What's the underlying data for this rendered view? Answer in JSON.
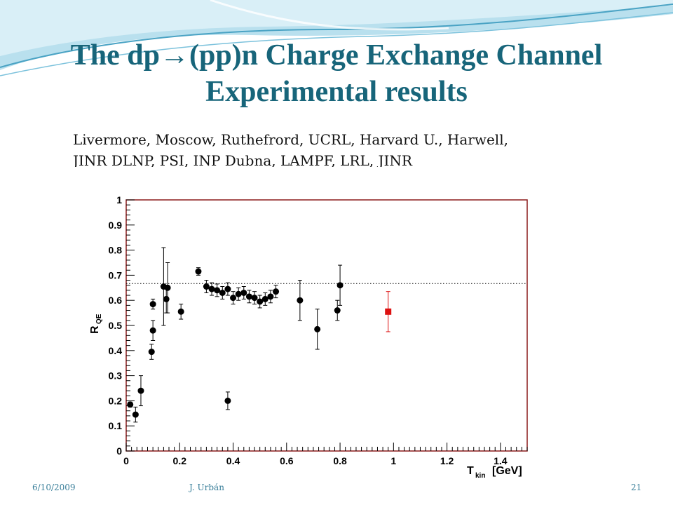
{
  "slide": {
    "title_line1": "The dp→(pp)n Charge Exchange Channel",
    "title_line2": "Experimental results",
    "sources_line1": "Livermore, Moscow, Ruthefrord, UCRL, Harvard U., Harwell,",
    "sources_line2": "JINR DLNP, PSI, INP Dubna, LAMPF, LRL, JINR",
    "theme_colors": {
      "title": "#17657a",
      "frame": "#8b1a1a",
      "highlight": "#dd1111",
      "footer": "#3a7f9a"
    }
  },
  "footer": {
    "date": "6/10/2009",
    "author": "J. Urbán",
    "page": "21"
  },
  "chart_data": {
    "type": "scatter",
    "title": "",
    "xlabel": {
      "main": "T",
      "sub": "kin",
      "units": "[GeV]"
    },
    "ylabel": {
      "main": "R",
      "sub": "QE"
    },
    "xlim": [
      0,
      1.5
    ],
    "ylim": [
      0,
      1
    ],
    "x_ticks": [
      "0",
      "0.2",
      "0.4",
      "0.6",
      "0.8",
      "1",
      "1.2",
      "1.4"
    ],
    "y_ticks": [
      "0",
      "0.1",
      "0.2",
      "0.3",
      "0.4",
      "0.5",
      "0.6",
      "0.7",
      "0.8",
      "0.9",
      "1"
    ],
    "reference_line": {
      "y": 0.667,
      "style": "dotted"
    },
    "grid": false,
    "series": [
      {
        "marker": "circle",
        "color": "#000000",
        "points": [
          {
            "x": 0.015,
            "y": 0.185,
            "err": 0.01
          },
          {
            "x": 0.035,
            "y": 0.145,
            "err": 0.03
          },
          {
            "x": 0.055,
            "y": 0.24,
            "err": 0.06
          },
          {
            "x": 0.095,
            "y": 0.395,
            "err": 0.03
          },
          {
            "x": 0.1,
            "y": 0.48,
            "err": 0.04
          },
          {
            "x": 0.1,
            "y": 0.585,
            "err": 0.02
          },
          {
            "x": 0.14,
            "y": 0.655,
            "err": 0.155
          },
          {
            "x": 0.15,
            "y": 0.605,
            "err": 0.055
          },
          {
            "x": 0.155,
            "y": 0.65,
            "err": 0.1
          },
          {
            "x": 0.205,
            "y": 0.555,
            "err": 0.03
          },
          {
            "x": 0.27,
            "y": 0.715,
            "err": 0.015
          },
          {
            "x": 0.3,
            "y": 0.655,
            "err": 0.025
          },
          {
            "x": 0.32,
            "y": 0.645,
            "err": 0.025
          },
          {
            "x": 0.34,
            "y": 0.64,
            "err": 0.025
          },
          {
            "x": 0.36,
            "y": 0.63,
            "err": 0.025
          },
          {
            "x": 0.38,
            "y": 0.645,
            "err": 0.025
          },
          {
            "x": 0.38,
            "y": 0.2,
            "err": 0.035
          },
          {
            "x": 0.4,
            "y": 0.61,
            "err": 0.025
          },
          {
            "x": 0.42,
            "y": 0.625,
            "err": 0.025
          },
          {
            "x": 0.44,
            "y": 0.63,
            "err": 0.025
          },
          {
            "x": 0.46,
            "y": 0.615,
            "err": 0.025
          },
          {
            "x": 0.48,
            "y": 0.61,
            "err": 0.025
          },
          {
            "x": 0.5,
            "y": 0.595,
            "err": 0.025
          },
          {
            "x": 0.52,
            "y": 0.605,
            "err": 0.025
          },
          {
            "x": 0.54,
            "y": 0.615,
            "err": 0.025
          },
          {
            "x": 0.56,
            "y": 0.635,
            "err": 0.025
          },
          {
            "x": 0.65,
            "y": 0.6,
            "err": 0.08
          },
          {
            "x": 0.715,
            "y": 0.485,
            "err": 0.08
          },
          {
            "x": 0.79,
            "y": 0.56,
            "err": 0.04
          },
          {
            "x": 0.8,
            "y": 0.66,
            "err": 0.08
          }
        ]
      },
      {
        "marker": "square",
        "color": "#dd1111",
        "points": [
          {
            "x": 0.98,
            "y": 0.555,
            "err": 0.08
          }
        ]
      }
    ]
  }
}
